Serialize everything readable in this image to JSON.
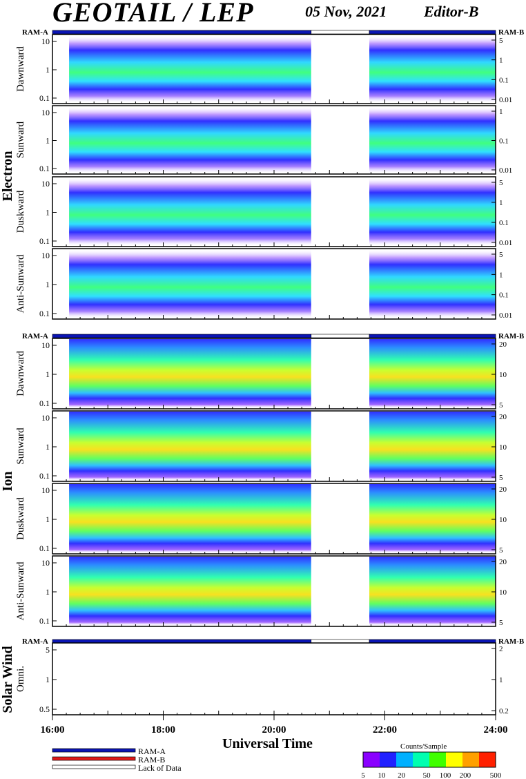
{
  "header": {
    "title": "GEOTAIL / LEP",
    "date": "05 Nov, 2021",
    "editor": "Editor-B"
  },
  "ram_tag_left": "RAM-A",
  "ram_tag_right": "RAM-B",
  "colors": {
    "ram_a": "#0a14b4",
    "ram_b": "#e01818",
    "lack_of_data": "#ffffff"
  },
  "legend": [
    {
      "key": "ram_a",
      "label": "RAM-A"
    },
    {
      "key": "ram_b",
      "label": "RAM-B"
    },
    {
      "key": "lack_of_data",
      "label": "Lack of Data"
    }
  ],
  "colorbar": {
    "title": "Counts/Sample",
    "ticks": [
      "5",
      "10",
      "20",
      "50",
      "100",
      "200",
      "500"
    ],
    "colors": [
      "#8a00ff",
      "#2020ff",
      "#00b0ff",
      "#00ffb0",
      "#40ff00",
      "#ffff00",
      "#ffa000",
      "#ff2000"
    ]
  },
  "chart_data": {
    "type": "heatmap",
    "xlabel": "Universal Time",
    "x_range_hours": [
      16,
      24
    ],
    "x_ticks": [
      "16:00",
      "18:00",
      "20:00",
      "22:00",
      "24:00"
    ],
    "data_gap_hours": [
      20.67,
      21.72
    ],
    "ram_status": [
      {
        "from": 16,
        "to": 20.67,
        "state": "ram_a"
      },
      {
        "from": 20.67,
        "to": 21.72,
        "state": "lack_of_data"
      },
      {
        "from": 21.72,
        "to": 24,
        "state": "ram_a"
      }
    ],
    "groups": [
      {
        "label": "Electron",
        "panels": [
          {
            "label": "Dawnward",
            "left_ticks": [
              "10",
              "1",
              "0.1"
            ],
            "right_ticks": [
              "5",
              "1",
              "0.1",
              "0.01"
            ]
          },
          {
            "label": "Sunward",
            "left_ticks": [
              "10",
              "1",
              "0.1"
            ],
            "right_ticks": [
              "1",
              "0.1",
              "0.01"
            ]
          },
          {
            "label": "Duskward",
            "left_ticks": [
              "10",
              "1",
              "0.1"
            ],
            "right_ticks": [
              "5",
              "1",
              "0.1",
              "0.01"
            ]
          },
          {
            "label": "Anti-Sunward",
            "left_ticks": [
              "10",
              "1",
              "0.1"
            ],
            "right_ticks": [
              "5",
              "1",
              "0.1",
              "0.01"
            ]
          }
        ]
      },
      {
        "label": "Ion",
        "panels": [
          {
            "label": "Dawnward",
            "left_ticks": [
              "10",
              "1",
              "0.1"
            ],
            "right_ticks": [
              "20",
              "10",
              "5"
            ]
          },
          {
            "label": "Sunward",
            "left_ticks": [
              "10",
              "1",
              "0.1"
            ],
            "right_ticks": [
              "20",
              "10",
              "5"
            ]
          },
          {
            "label": "Duskward",
            "left_ticks": [
              "10",
              "1",
              "0.1"
            ],
            "right_ticks": [
              "20",
              "10",
              "5"
            ]
          },
          {
            "label": "Anti-Sunward",
            "left_ticks": [
              "10",
              "1",
              "0.1"
            ],
            "right_ticks": [
              "20",
              "10",
              "5"
            ]
          }
        ]
      },
      {
        "label": "Solar Wind",
        "panels": [
          {
            "label": "Omni.",
            "left_ticks": [
              "5",
              "1",
              "0.5"
            ],
            "right_ticks": [
              "2",
              "1",
              "0.2"
            ]
          }
        ]
      }
    ]
  }
}
